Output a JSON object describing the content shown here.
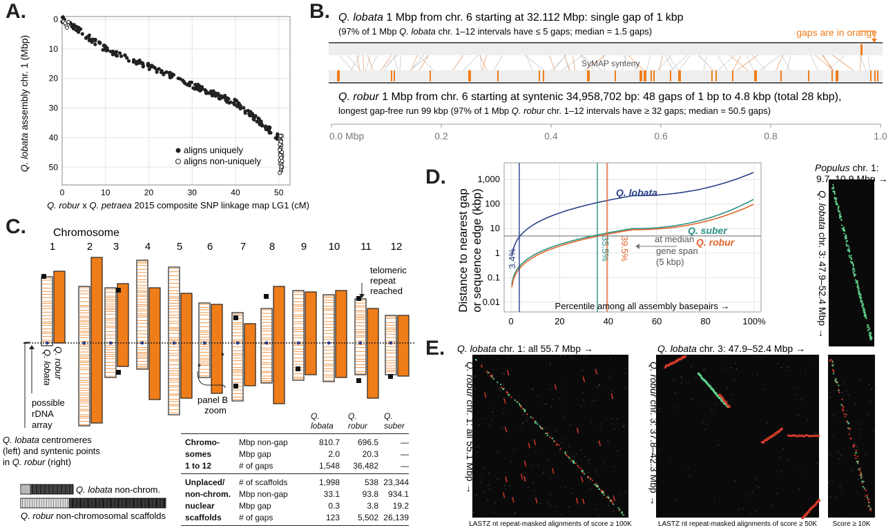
{
  "panels": {
    "a": "A.",
    "b": "B.",
    "c": "C.",
    "d": "D.",
    "e": "E."
  },
  "panelA": {
    "ylabel_species": "Q. lobata",
    "ylabel_rest": " assembly chr. 1  (Mbp)",
    "xlabel_species": "Q. robur",
    "xlabel_mid": " x ",
    "xlabel_species2": "Q. petraea",
    "xlabel_rest": " 2015 composite SNP linkage map LG1  (cM)",
    "xticks": [
      "0",
      "10",
      "20",
      "30",
      "40",
      "50"
    ],
    "yticks": [
      "0",
      "10",
      "20",
      "30",
      "40",
      "50"
    ],
    "legend_unique": "aligns uniquely",
    "legend_nonunique": "aligns non-uniquely"
  },
  "panelB": {
    "top_species": "Q. lobata",
    "top_line1": " 1 Mbp from chr. 6 starting at 32.112 Mbp:  single gap of 1 kbp",
    "top_line2_a": "(97% of 1 Mbp ",
    "top_line2_sp": "Q. lobata",
    "top_line2_b": " chr. 1–12 intervals have ≤ 5 gaps;  median = 1.5 gaps)",
    "gaps_label": "gaps are in orange",
    "synteny_label": "SyMAP synteny",
    "bot_species": "Q. robur",
    "bot_line1": " 1 Mbp from chr. 6 starting at syntenic 34,958,702 bp:  48 gaps of 1 bp to 4.8 kbp (total 28 kbp),",
    "bot_line2_a": "longest gap-free run 99 kbp   (97% of 1 Mbp ",
    "bot_line2_sp": "Q. robur",
    "bot_line2_b": " chr. 1–12 intervals have ≥ 32 gaps;  median = 50.5 gaps)",
    "axis": [
      "0.0 Mbp",
      "0.2",
      "0.4",
      "0.6",
      "0.8",
      "1.0"
    ]
  },
  "panelC": {
    "title": "Chromosome",
    "chromosomes": [
      "1",
      "2",
      "3",
      "4",
      "5",
      "6",
      "7",
      "8",
      "9",
      "10",
      "11",
      "12"
    ],
    "telomeric": [
      "telomeric",
      "repeat",
      "reached"
    ],
    "label_robur": "Q. robur",
    "label_lobata": "Q. lobata",
    "rdna": [
      "possible",
      "rDNA",
      "array"
    ],
    "panelb_zoom": [
      "panel B",
      "zoom"
    ],
    "centromere_1_sp": "Q. lobata",
    "centromere_1": " centromeres",
    "centromere_2": "(left) and syntenic points",
    "centromere_3_a": "in ",
    "centromere_3_sp": "Q. robur",
    "centromere_3_b": " (right)",
    "nonchrom_lobata_sp": "Q. lobata",
    "nonchrom_lobata": " non-chrom.",
    "nonchrom_robur_sp": "Q. robur",
    "nonchrom_robur": " non-chromosomal scaffolds",
    "star": "*"
  },
  "table": {
    "headers": [
      [
        "Q.",
        "lobata"
      ],
      [
        "Q.",
        "robur"
      ],
      [
        "Q.",
        "suber"
      ]
    ],
    "group1": [
      "Chromo-",
      "somes",
      "1 to 12"
    ],
    "group2": [
      "Unplaced/",
      "non-chrom.",
      "nuclear",
      "scaffolds"
    ],
    "rows1": [
      {
        "label": "Mbp non-gap",
        "v": [
          "810.7",
          "696.5",
          "—"
        ]
      },
      {
        "label": "Mbp gap",
        "v": [
          "2.0",
          "20.3",
          "—"
        ]
      },
      {
        "label": "# of gaps",
        "v": [
          "1,548",
          "36,482",
          "—"
        ]
      }
    ],
    "rows2": [
      {
        "label": "# of scaffolds",
        "v": [
          "1,998",
          "538",
          "23,344"
        ]
      },
      {
        "label": "Mbp non-gap",
        "v": [
          "33.1",
          "93.8",
          "934.1"
        ]
      },
      {
        "label": "Mbp gap",
        "v": [
          "0.3",
          "3.8",
          "19.2"
        ]
      },
      {
        "label": "# of gaps",
        "v": [
          "123",
          "5,502",
          "26,139"
        ]
      }
    ]
  },
  "panelD": {
    "ylabel1": "Distance to nearest gap",
    "ylabel2": "or sequence edge  (kbp)",
    "yticks": [
      "1,000",
      "100",
      "10",
      "1",
      "0.1",
      "0.01"
    ],
    "xticks": [
      "0",
      "20",
      "40",
      "60",
      "80",
      "100%"
    ],
    "xlabel": "Percentile among all assembly basepairs →",
    "series": [
      "Q. lobata",
      "Q. suber",
      "Q. robur"
    ],
    "pct_lobata": "3.4%",
    "pct_suber": "35.5%",
    "pct_robur": "39.5%",
    "median_note": [
      "at median",
      "gene span",
      "(5 kbp)"
    ],
    "colors": {
      "lobata": "#2a3f87",
      "suber": "#2a9184",
      "robur": "#e0632a"
    }
  },
  "panelE": {
    "left_top_sp": "Q. lobata",
    "left_top": " chr. 1:  all 55.7 Mbp →",
    "left_side_sp": "Q. robur",
    "left_side": " chr. 1:  all 55.1 Mbp →",
    "left_caption": "LASTZ nt repeat-masked alignments of score ≥ 100K",
    "mid_top_sp": "Q. lobata",
    "mid_top": " chr. 3:  47.9–52.4 Mbp →",
    "mid_side_sp": "Q. robur",
    "mid_side": " chr. 3:  37.8–42.3 Mbp →",
    "mid_caption": "LASTZ nt repeat-masked alignments of score ≥ 50K",
    "score_caption": "Score ≥ 10K",
    "pop_sp": "Populus",
    "pop_1": " chr. 1:",
    "pop_2": "9.7–10.9 Mbp →",
    "pop_side_sp": "Q. lobata",
    "pop_side": " chr. 3:  47.9–52.4 Mbp →"
  }
}
